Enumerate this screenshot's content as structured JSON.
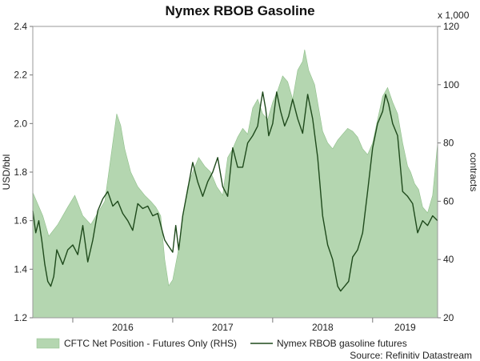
{
  "chart_data": {
    "type": "line",
    "title": "Nymex RBOB Gasoline",
    "source": "Source: Refinitiv Datastream",
    "left_axis": {
      "label": "USD/bbl",
      "ylim": [
        1.2,
        2.4
      ],
      "ticks": [
        "1.2",
        "1.4",
        "1.6",
        "1.8",
        "2.0",
        "2.2",
        "2.4"
      ]
    },
    "right_axis": {
      "label": "contracts",
      "unit_label": "x 1,000",
      "ylim": [
        20,
        120
      ],
      "ticks": [
        "20",
        "40",
        "60",
        "80",
        "100",
        "120"
      ]
    },
    "x_axis": {
      "range": [
        2015.6,
        2019.65
      ],
      "tick_labels": [
        "2016",
        "2017",
        "2018",
        "2019"
      ],
      "grid": false
    },
    "legend": {
      "placement": "bottom",
      "items": [
        {
          "label": "CFTC Net Position - Futures Only (RHS)",
          "style": "area",
          "color": "#b4d6b0"
        },
        {
          "label": "Nymex RBOB gasoline futures",
          "style": "line",
          "color": "#1f4a1c"
        }
      ]
    },
    "series": [
      {
        "name": "CFTC Net Position - Futures Only (RHS)",
        "axis": "right",
        "type": "area",
        "color": "#b4d6b0",
        "x": [
          2015.6,
          2015.7,
          2015.76,
          2015.85,
          2015.95,
          2016.02,
          2016.1,
          2016.18,
          2016.25,
          2016.32,
          2016.38,
          2016.44,
          2016.48,
          2016.52,
          2016.58,
          2016.65,
          2016.72,
          2016.78,
          2016.83,
          2016.88,
          2016.92,
          2016.96,
          2017.0,
          2017.05,
          2017.1,
          2017.15,
          2017.2,
          2017.26,
          2017.32,
          2017.38,
          2017.44,
          2017.5,
          2017.55,
          2017.6,
          2017.65,
          2017.7,
          2017.75,
          2017.8,
          2017.85,
          2017.9,
          2017.95,
          2018.0,
          2018.05,
          2018.1,
          2018.15,
          2018.2,
          2018.25,
          2018.3,
          2018.32,
          2018.36,
          2018.42,
          2018.46,
          2018.5,
          2018.55,
          2018.6,
          2018.65,
          2018.7,
          2018.75,
          2018.8,
          2018.85,
          2018.9,
          2018.95,
          2019.0,
          2019.05,
          2019.1,
          2019.15,
          2019.2,
          2019.25,
          2019.3,
          2019.35,
          2019.38,
          2019.42,
          2019.46,
          2019.5,
          2019.55,
          2019.6,
          2019.65
        ],
        "values": [
          63,
          55,
          48,
          52,
          58,
          62,
          55,
          52,
          56,
          60,
          75,
          90,
          86,
          78,
          70,
          65,
          62,
          60,
          58,
          55,
          40,
          31,
          33,
          42,
          55,
          65,
          70,
          75,
          72,
          70,
          65,
          62,
          75,
          78,
          82,
          85,
          83,
          92,
          95,
          90,
          88,
          94,
          98,
          103,
          101,
          95,
          105,
          108,
          112,
          105,
          100,
          92,
          84,
          80,
          78,
          81,
          83,
          85,
          84,
          82,
          78,
          76,
          80,
          88,
          96,
          99,
          94,
          90,
          80,
          72,
          70,
          66,
          64,
          58,
          56,
          62,
          80
        ]
      },
      {
        "name": "Nymex RBOB gasoline futures",
        "axis": "left",
        "type": "line",
        "color": "#1f4a1c",
        "x": [
          2015.6,
          2015.63,
          2015.66,
          2015.69,
          2015.72,
          2015.75,
          2015.78,
          2015.81,
          2015.84,
          2015.87,
          2015.9,
          2015.95,
          2016.0,
          2016.05,
          2016.1,
          2016.15,
          2016.2,
          2016.25,
          2016.3,
          2016.35,
          2016.4,
          2016.45,
          2016.5,
          2016.55,
          2016.6,
          2016.65,
          2016.7,
          2016.75,
          2016.8,
          2016.85,
          2016.9,
          2016.92,
          2016.95,
          2017.0,
          2017.03,
          2017.06,
          2017.1,
          2017.15,
          2017.2,
          2017.25,
          2017.3,
          2017.35,
          2017.4,
          2017.45,
          2017.5,
          2017.55,
          2017.6,
          2017.65,
          2017.7,
          2017.75,
          2017.8,
          2017.85,
          2017.88,
          2017.9,
          2017.93,
          2017.96,
          2018.0,
          2018.04,
          2018.08,
          2018.12,
          2018.16,
          2018.2,
          2018.25,
          2018.3,
          2018.35,
          2018.4,
          2018.45,
          2018.5,
          2018.55,
          2018.6,
          2018.65,
          2018.68,
          2018.72,
          2018.76,
          2018.8,
          2018.85,
          2018.9,
          2018.95,
          2019.0,
          2019.05,
          2019.1,
          2019.13,
          2019.16,
          2019.2,
          2019.25,
          2019.3,
          2019.35,
          2019.4,
          2019.45,
          2019.5,
          2019.55,
          2019.6,
          2019.65
        ],
        "values": [
          1.64,
          1.55,
          1.6,
          1.52,
          1.42,
          1.35,
          1.33,
          1.37,
          1.48,
          1.45,
          1.42,
          1.48,
          1.5,
          1.46,
          1.58,
          1.43,
          1.52,
          1.64,
          1.69,
          1.72,
          1.66,
          1.68,
          1.63,
          1.6,
          1.56,
          1.67,
          1.65,
          1.66,
          1.62,
          1.63,
          1.55,
          1.52,
          1.5,
          1.47,
          1.58,
          1.48,
          1.62,
          1.73,
          1.84,
          1.76,
          1.7,
          1.76,
          1.8,
          1.86,
          1.74,
          1.7,
          1.9,
          1.82,
          1.82,
          1.92,
          1.95,
          1.99,
          2.08,
          2.13,
          2.06,
          1.95,
          2.0,
          2.13,
          2.05,
          1.99,
          2.03,
          2.1,
          2.02,
          1.96,
          2.12,
          2.02,
          1.86,
          1.62,
          1.5,
          1.44,
          1.33,
          1.31,
          1.33,
          1.35,
          1.45,
          1.48,
          1.55,
          1.72,
          1.9,
          2.0,
          2.05,
          2.12,
          2.08,
          2.0,
          1.95,
          1.72,
          1.7,
          1.67,
          1.55,
          1.6,
          1.58,
          1.62,
          1.6
        ]
      }
    ]
  }
}
